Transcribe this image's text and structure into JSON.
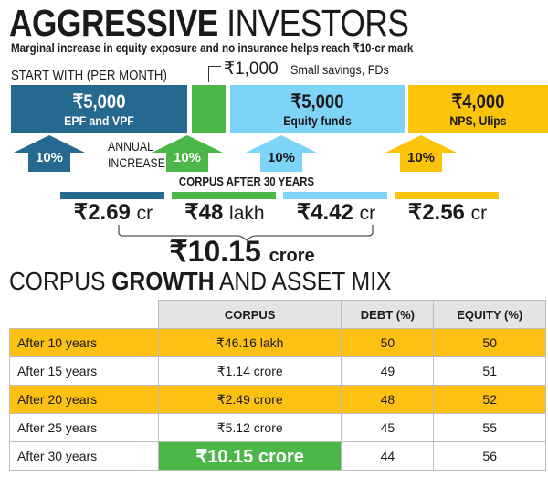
{
  "header": {
    "title_bold": "AGGRESSIVE",
    "title_light": "INVESTORS",
    "subtitle": "Marginal increase in equity exposure and no insurance helps reach ₹10-cr mark"
  },
  "start_label": "START WITH (PER MONTH)",
  "annual_label": [
    "ANNUAL",
    "INCREASE"
  ],
  "small_savings": {
    "amount": "₹1,000",
    "label": "Small savings, FDs"
  },
  "colors": {
    "epf": "#256890",
    "small": "#4cb749",
    "equity": "#7dd4f6",
    "nps": "#fcc30b"
  },
  "investments": [
    {
      "amount": "₹5,000",
      "label": "EPF and VPF",
      "increase": "10%",
      "corpus": "₹2.69",
      "unit": "cr"
    },
    {
      "amount": "",
      "label": "",
      "increase": "10%",
      "corpus": "₹48",
      "unit": "lakh"
    },
    {
      "amount": "₹5,000",
      "label": "Equity funds",
      "increase": "10%",
      "corpus": "₹4.42",
      "unit": "cr"
    },
    {
      "amount": "₹4,000",
      "label": "NPS, Ulips",
      "increase": "10%",
      "corpus": "₹2.56",
      "unit": "cr"
    }
  ],
  "corpus_header": "CORPUS AFTER 30 YEARS",
  "total": {
    "value": "₹10.15",
    "unit": "crore"
  },
  "growth_title": {
    "a": "CORPUS",
    "b": "GROWTH",
    "c": "AND ASSET MIX"
  },
  "table": {
    "headers": [
      "CORPUS",
      "DEBT (%)",
      "EQUITY (%)"
    ],
    "rows": [
      [
        "After 10 years",
        "₹46.16 lakh",
        "50",
        "50"
      ],
      [
        "After 15 years",
        "₹1.14 crore",
        "49",
        "51"
      ],
      [
        "After 20 years",
        "₹2.49 crore",
        "48",
        "52"
      ],
      [
        "After 25 years",
        "₹5.12 crore",
        "45",
        "55"
      ],
      [
        "After 30 years",
        "₹10.15 crore",
        "44",
        "56"
      ]
    ]
  }
}
